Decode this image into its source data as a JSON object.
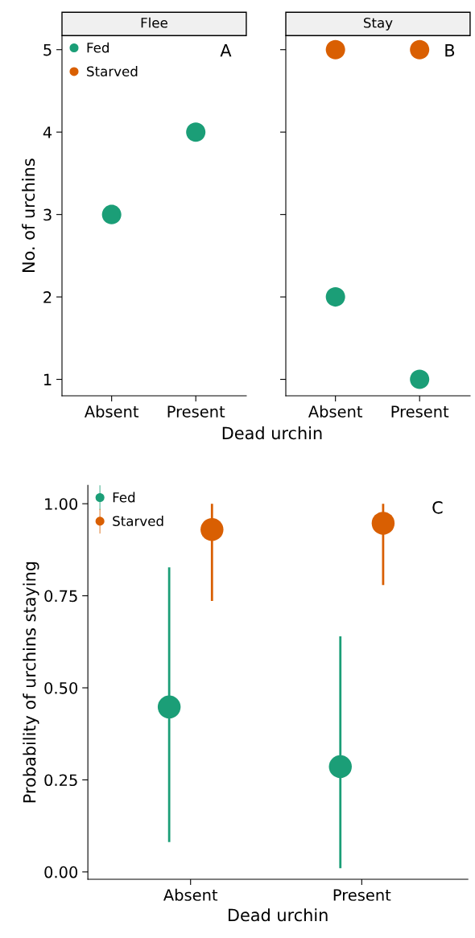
{
  "chart_data": [
    {
      "type": "scatter",
      "title": "Flee",
      "ylabel": "No. of urchins",
      "xlabel": "Dead urchin",
      "categories": [
        "Absent",
        "Present"
      ],
      "ylim": [
        0.8,
        5.17
      ],
      "yticks": [
        1,
        2,
        3,
        4,
        5
      ],
      "marker": "circle",
      "legend": "top left",
      "grid": false,
      "annotations": [
        "A"
      ],
      "series": [
        {
          "name": "Fed",
          "color": "#1b9e77",
          "values": [
            3,
            4
          ]
        },
        {
          "name": "Starved",
          "color": "#d95f02",
          "values": [
            null,
            null
          ]
        }
      ]
    },
    {
      "type": "scatter",
      "title": "Stay",
      "categories": [
        "Absent",
        "Present"
      ],
      "ylim": [
        0.8,
        5.17
      ],
      "yticks": [
        1,
        2,
        3,
        4,
        5
      ],
      "tick_labels": "x",
      "marker": "circle",
      "grid": false,
      "annotations": [
        "B"
      ],
      "series": [
        {
          "color": "#1b9e77",
          "values": [
            2,
            1
          ]
        },
        {
          "color": "#d95f02",
          "values": [
            5,
            5
          ]
        }
      ]
    },
    {
      "type": "scatter",
      "ylabel": "Probability of urchins staying",
      "xlabel": "Dead urchin",
      "categories": [
        "Absent",
        "Present"
      ],
      "ylim": [
        -0.02,
        1.05
      ],
      "yticks": [
        {
          "value": 0,
          "label": "0.00"
        },
        {
          "value": 0.25,
          "label": "0.25"
        },
        {
          "value": 0.5,
          "label": "0.50"
        },
        {
          "value": 0.75,
          "label": "0.75"
        },
        {
          "value": 1,
          "label": "1.00"
        }
      ],
      "marker": "circle",
      "legend": "top left",
      "grid": false,
      "annotations": [
        "C"
      ],
      "series": [
        {
          "name": "Fed",
          "color": "#1b9e77",
          "values": [
            0.448,
            0.286
          ],
          "errors": [
            [
              0.081,
              0.827
            ],
            [
              0.01,
              0.64
            ]
          ]
        },
        {
          "name": "Starved",
          "color": "#d95f02",
          "values": [
            0.93,
            0.947
          ],
          "errors": [
            [
              0.736,
              1.0
            ],
            [
              0.779,
              1.0
            ]
          ]
        }
      ]
    }
  ]
}
